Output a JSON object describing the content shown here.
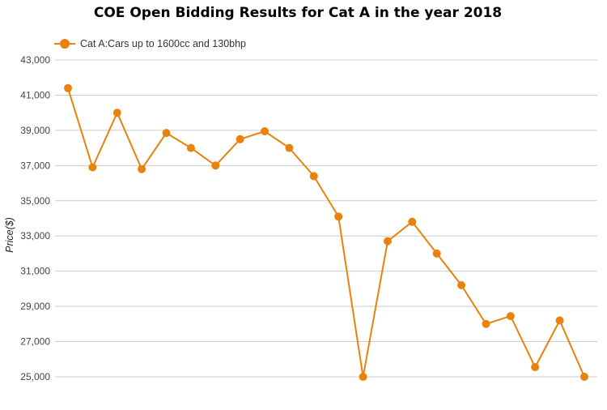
{
  "chart_data": {
    "type": "line",
    "title": "COE Open Bidding Results for Cat A in the year 2018",
    "xlabel": "",
    "ylabel": "Price($)",
    "ylim": [
      25000,
      43000
    ],
    "yticks": [
      "25,000",
      "27,000",
      "29,000",
      "31,000",
      "33,000",
      "35,000",
      "37,000",
      "39,000",
      "41,000",
      "43,000"
    ],
    "ytick_values": [
      25000,
      27000,
      29000,
      31000,
      33000,
      35000,
      37000,
      39000,
      41000,
      43000
    ],
    "grid": true,
    "legend_position": "top-left",
    "series": [
      {
        "name": "Cat A:Cars up to 1600cc and 130bhp",
        "color": "#e8820c",
        "values": [
          41400,
          36900,
          40000,
          36800,
          38850,
          38000,
          37000,
          38500,
          38950,
          38000,
          36400,
          34100,
          25000,
          32700,
          33800,
          32000,
          30200,
          28000,
          28450,
          25550,
          28200,
          25000
        ]
      }
    ]
  }
}
